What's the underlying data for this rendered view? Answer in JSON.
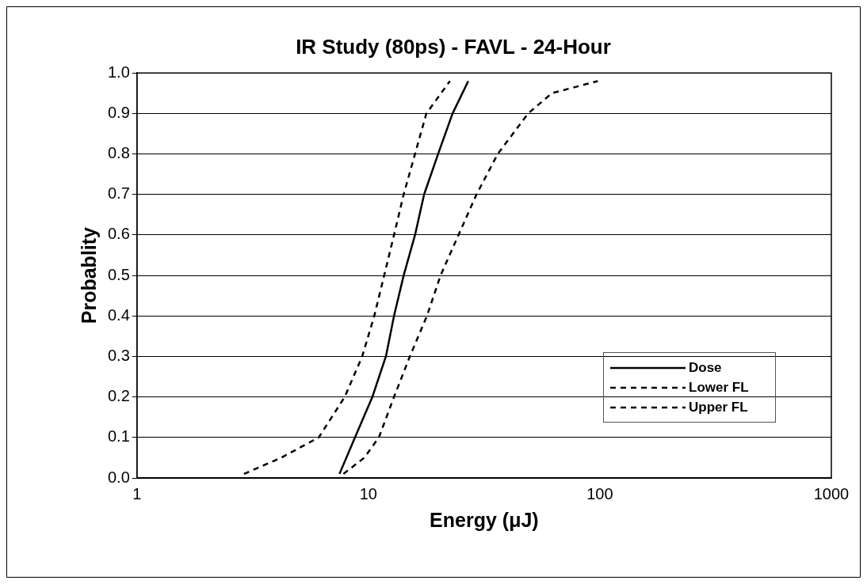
{
  "chart_data": {
    "type": "line",
    "title": "IR Study (80ps) - FAVL - 24-Hour",
    "xlabel": "Energy (μJ)",
    "ylabel": "Probablity",
    "log": "x",
    "xlim": [
      1,
      1000
    ],
    "xticks": [
      1,
      10,
      100,
      1000
    ],
    "ylim": [
      0,
      1
    ],
    "yticks": [
      {
        "value": 0,
        "label": "0.0"
      },
      {
        "value": 0.1,
        "label": "0.1"
      },
      {
        "value": 0.2,
        "label": "0.2"
      },
      {
        "value": 0.3,
        "label": "0.3"
      },
      {
        "value": 0.4,
        "label": "0.4"
      },
      {
        "value": 0.5,
        "label": "0.5"
      },
      {
        "value": 0.6,
        "label": "0.6"
      },
      {
        "value": 0.7,
        "label": "0.7"
      },
      {
        "value": 0.8,
        "label": "0.8"
      },
      {
        "value": 0.9,
        "label": "0.9"
      },
      {
        "value": 1,
        "label": "1.0"
      }
    ],
    "grid": "y",
    "legend": "bottom right",
    "marker": "none",
    "series": [
      {
        "name": "Dose",
        "color": "#000000",
        "line_style": "solid",
        "x": [
          7.5,
          8.75,
          10.4,
          11.9,
          12.9,
          14.2,
          15.9,
          17.4,
          20.0,
          23.1,
          27
        ],
        "values": [
          0.01,
          0.1,
          0.2,
          0.3,
          0.4,
          0.5,
          0.6,
          0.7,
          0.8,
          0.9,
          0.98
        ]
      },
      {
        "name": "Lower FL",
        "color": "#000000",
        "line_style": "dashed",
        "x": [
          2.9,
          4.2,
          6.1,
          7.9,
          9.4,
          10.6,
          11.7,
          12.9,
          14.2,
          15.9,
          17.8,
          22.5
        ],
        "values": [
          0.01,
          0.05,
          0.1,
          0.2,
          0.3,
          0.4,
          0.5,
          0.6,
          0.7,
          0.8,
          0.9,
          0.98
        ]
      },
      {
        "name": "Upper FL",
        "color": "#000000",
        "line_style": "dashed",
        "x": [
          7.8,
          9.6,
          11.1,
          12.9,
          15.1,
          17.9,
          20.5,
          24.5,
          29.3,
          36.2,
          49,
          62,
          98
        ],
        "values": [
          0.01,
          0.05,
          0.1,
          0.2,
          0.3,
          0.4,
          0.5,
          0.6,
          0.7,
          0.8,
          0.9,
          0.95,
          0.98
        ]
      }
    ]
  }
}
